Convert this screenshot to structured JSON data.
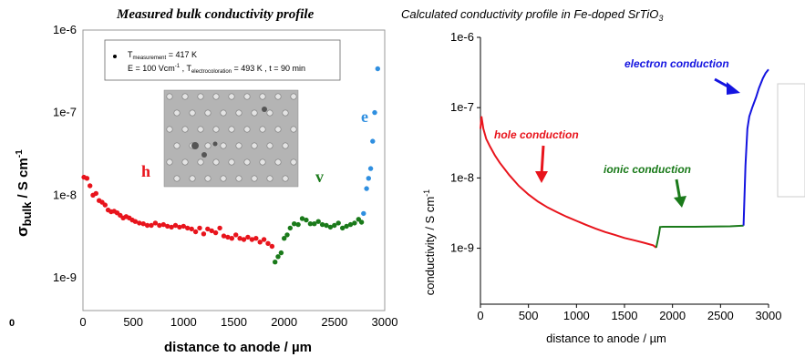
{
  "chart_data": [
    {
      "type": "scatter",
      "title": "Measured bulk conductivity profile",
      "xlabel": "distance to anode / µm",
      "ylabel_main": "σ",
      "ylabel_sub": "bulk",
      "ylabel_rest": " / S cm",
      "ylabel_sup": "-1",
      "yscale": "log",
      "xlim": [
        0,
        3000
      ],
      "ylim": [
        4e-10,
        1e-06
      ],
      "x_ticks": [
        "0",
        "500",
        "1000",
        "1500",
        "2000",
        "2500",
        "3000"
      ],
      "y_ticks": [
        "1e-9",
        "1e-8",
        "1e-7",
        "1e-6"
      ],
      "stray_label": "0",
      "legend": {
        "line1_a": "T",
        "line1_sub": "measurement",
        "line1_b": " = 417 K",
        "line2_a": "E = 100 Vcm",
        "line2_sup": "-1",
        "line2_b": " , T",
        "line2_sub": "electrocoloration",
        "line2_c": " = 493 K , t = 90 min"
      },
      "annotations": [
        {
          "text": "h",
          "color": "#e8141c"
        },
        {
          "text": "v",
          "color": "#1a7a1a"
        },
        {
          "text": "e",
          "color": "#2f8fe0"
        }
      ],
      "series": [
        {
          "color": "#e8141c",
          "x": [
            10,
            40,
            70,
            100,
            130,
            160,
            190,
            220,
            250,
            280,
            310,
            340,
            370,
            400,
            430,
            460,
            490,
            520,
            560,
            600,
            640,
            680,
            720,
            760,
            800,
            840,
            880,
            920,
            960,
            1000,
            1040,
            1080,
            1120,
            1160,
            1200,
            1240,
            1280,
            1320,
            1360,
            1400,
            1440,
            1480,
            1520,
            1560,
            1600,
            1640,
            1680,
            1720,
            1760,
            1800,
            1840,
            1880
          ],
          "y": [
            1.65e-08,
            1.6e-08,
            1.3e-08,
            1e-08,
            1.05e-08,
            8.6e-09,
            8.2e-09,
            7.6e-09,
            6.6e-09,
            6.3e-09,
            6.4e-09,
            6.1e-09,
            5.7e-09,
            5.3e-09,
            5.5e-09,
            5.3e-09,
            5e-09,
            4.8e-09,
            4.6e-09,
            4.5e-09,
            4.3e-09,
            4.3e-09,
            4.6e-09,
            4.3e-09,
            4.4e-09,
            4.2e-09,
            4.1e-09,
            4.3e-09,
            4.1e-09,
            4.2e-09,
            4e-09,
            3.9e-09,
            3.6e-09,
            4e-09,
            3.4e-09,
            3.9e-09,
            3.7e-09,
            3.5e-09,
            4e-09,
            3.2e-09,
            3.1e-09,
            3e-09,
            3.3e-09,
            3e-09,
            2.9e-09,
            3.1e-09,
            2.9e-09,
            3e-09,
            2.7e-09,
            2.9e-09,
            2.6e-09,
            2.4e-09
          ]
        },
        {
          "color": "#1a7a1a",
          "x": [
            1910,
            1940,
            1970,
            2000,
            2030,
            2060,
            2100,
            2140,
            2180,
            2220,
            2260,
            2300,
            2340,
            2380,
            2420,
            2460,
            2500,
            2540,
            2580,
            2620,
            2660,
            2700,
            2740,
            2770
          ],
          "y": [
            1.55e-09,
            1.8e-09,
            2e-09,
            3e-09,
            3.3e-09,
            4e-09,
            4.5e-09,
            4.4e-09,
            5.2e-09,
            5e-09,
            4.5e-09,
            4.5e-09,
            4.8e-09,
            4.4e-09,
            4.3e-09,
            4.1e-09,
            4.3e-09,
            4.6e-09,
            4e-09,
            4.2e-09,
            4.4e-09,
            4.6e-09,
            5.1e-09,
            4.7e-09
          ]
        },
        {
          "color": "#2f8fe0",
          "x": [
            2790,
            2820,
            2840,
            2860,
            2880,
            2900,
            2930
          ],
          "y": [
            6e-09,
            1.2e-08,
            1.6e-08,
            2.1e-08,
            4.5e-08,
            1e-07,
            3.4e-07
          ]
        }
      ]
    },
    {
      "type": "line",
      "title_main": "Calculated conductivity profile in Fe-doped SrTiO",
      "title_sub": "3",
      "xlabel": "distance to anode /   µm",
      "ylabel": "conductivity /  S cm",
      "ylabel_sup": "-1",
      "yscale": "log",
      "xlim": [
        0,
        3000
      ],
      "ylim": [
        1.6e-10,
        1e-06
      ],
      "x_ticks": [
        "0",
        "500",
        "1000",
        "1500",
        "2000",
        "2500",
        "3000"
      ],
      "y_ticks": [
        "1e-9",
        "1e-8",
        "1e-7",
        "1e-6"
      ],
      "annotations": [
        {
          "text": "hole conduction",
          "color": "#e8141c"
        },
        {
          "text": "ionic conduction",
          "color": "#1a7a1a"
        },
        {
          "text": "electron conduction",
          "color": "#1414e0"
        }
      ],
      "series": [
        {
          "color": "#e8141c",
          "x": [
            0,
            10,
            30,
            60,
            100,
            150,
            200,
            300,
            400,
            500,
            600,
            700,
            800,
            900,
            1000,
            1100,
            1200,
            1300,
            1400,
            1500,
            1600,
            1700,
            1800,
            1830
          ],
          "y": [
            5e-08,
            7.5e-08,
            5e-08,
            3.6e-08,
            2.8e-08,
            2.1e-08,
            1.65e-08,
            1.1e-08,
            7.7e-09,
            5.8e-09,
            4.6e-09,
            3.8e-09,
            3.25e-09,
            2.8e-09,
            2.45e-09,
            2.15e-09,
            1.9e-09,
            1.7e-09,
            1.55e-09,
            1.4e-09,
            1.3e-09,
            1.2e-09,
            1.1e-09,
            1.02e-09
          ]
        },
        {
          "color": "#1a7a1a",
          "x": [
            1830,
            1860,
            1870,
            1900,
            2000,
            2200,
            2400,
            2600,
            2740
          ],
          "y": [
            1.02e-09,
            1.6e-09,
            2e-09,
            2.02e-09,
            2.02e-09,
            2.02e-09,
            2.03e-09,
            2.05e-09,
            2.1e-09
          ]
        },
        {
          "color": "#1414e0",
          "x": [
            2740,
            2760,
            2780,
            2800,
            2830,
            2870,
            2900,
            2940,
            2970,
            3000
          ],
          "y": [
            2.1e-09,
            1.5e-08,
            5e-08,
            7.5e-08,
            1e-07,
            1.4e-07,
            1.9e-07,
            2.6e-07,
            3.1e-07,
            3.5e-07
          ]
        }
      ]
    }
  ]
}
